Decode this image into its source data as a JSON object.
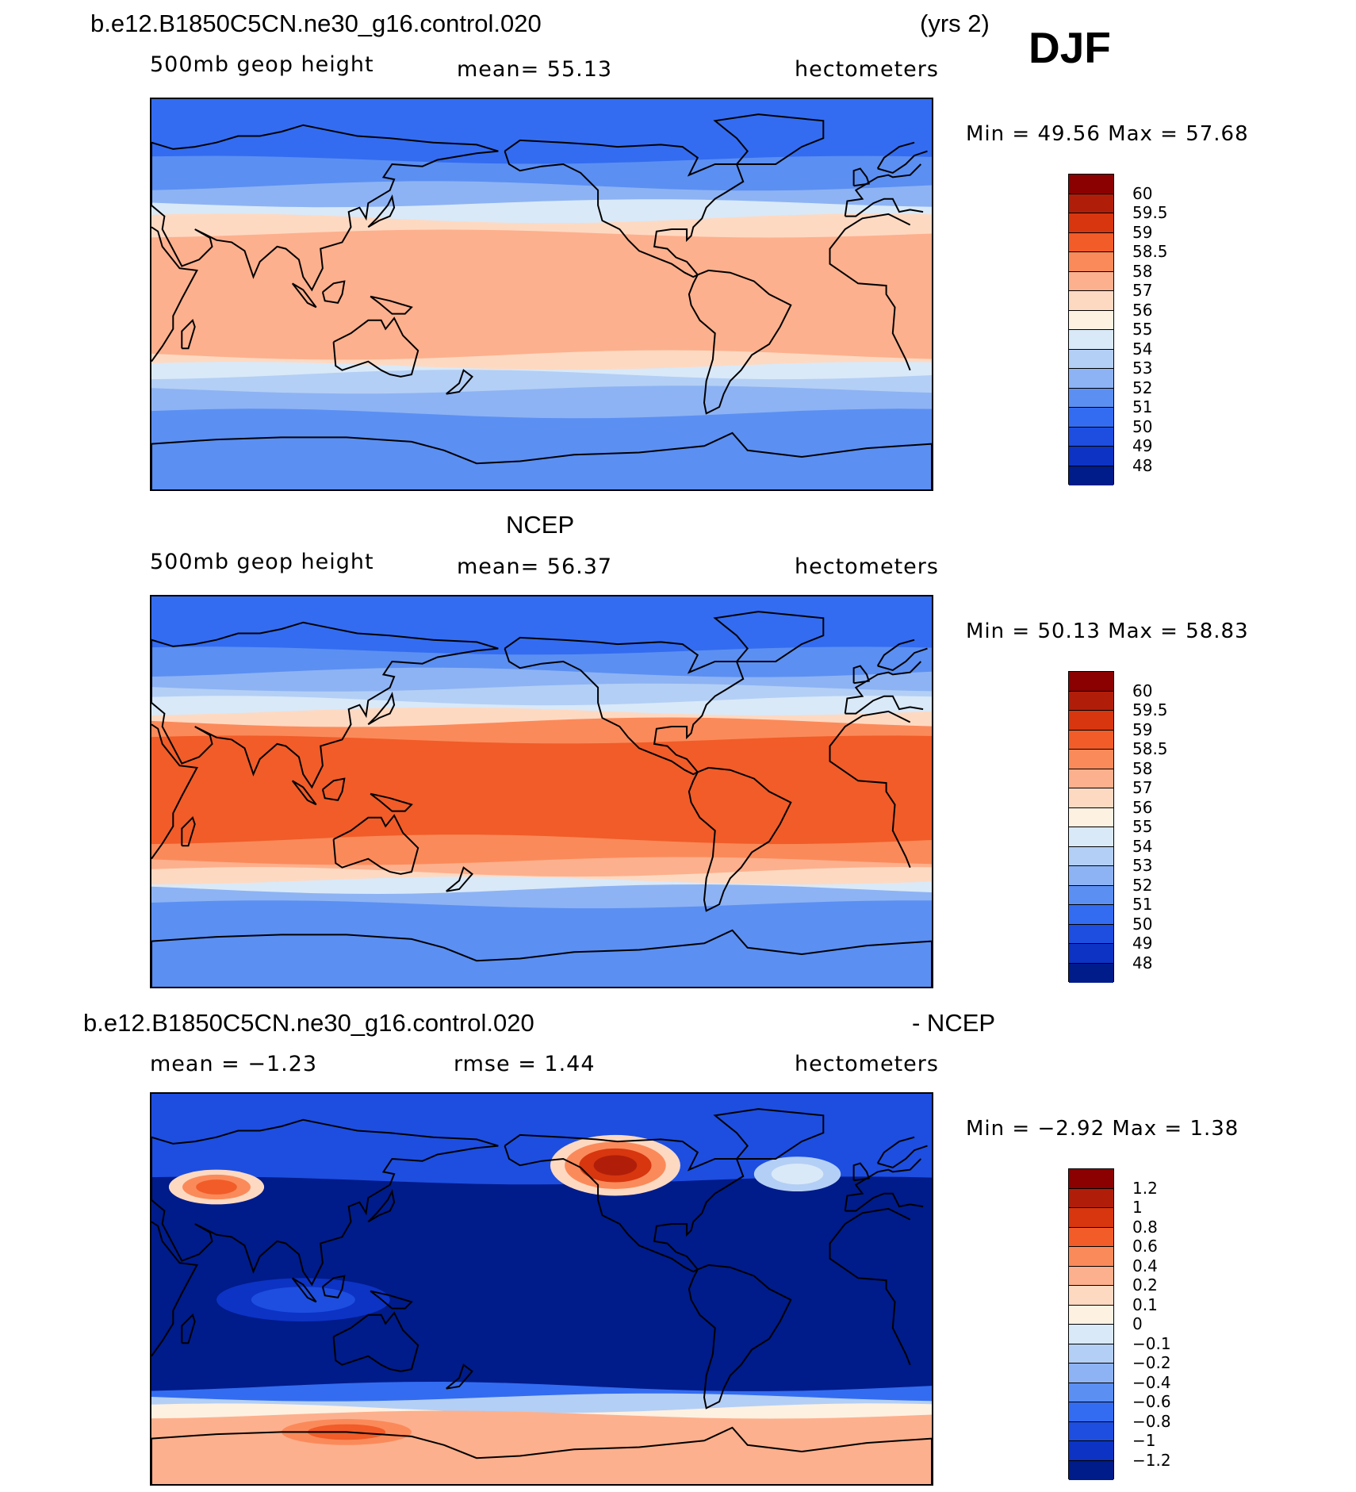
{
  "header": {
    "case_name": "b.e12.B1850C5CN.ne30_g16.control.020",
    "years": "(yrs 2)",
    "season": "DJF"
  },
  "panels": [
    {
      "id": "model",
      "title": "",
      "left_label": "500mb geop height",
      "center_label": "mean=  55.13",
      "right_label": "hectometers",
      "min_max": "Min =   49.56 Max =   57.68",
      "colorbar_labels": [
        "60",
        "59.5",
        "59",
        "58.5",
        "58",
        "57",
        "56",
        "55",
        "54",
        "53",
        "52",
        "51",
        "50",
        "49",
        "48"
      ]
    },
    {
      "id": "obs",
      "title": "NCEP",
      "left_label": "500mb geop height",
      "center_label": "mean=  56.37",
      "right_label": "hectometers",
      "min_max": "Min =   50.13 Max =   58.83",
      "colorbar_labels": [
        "60",
        "59.5",
        "59",
        "58.5",
        "58",
        "57",
        "56",
        "55",
        "54",
        "53",
        "52",
        "51",
        "50",
        "49",
        "48"
      ]
    },
    {
      "id": "diff",
      "title_left": "b.e12.B1850C5CN.ne30_g16.control.020",
      "title_right": "- NCEP",
      "left_label": "mean =  −1.23",
      "center_label": "rmse =    1.44",
      "right_label": "hectometers",
      "min_max": "Min =  −2.92 Max =    1.38",
      "colorbar_labels": [
        "1.2",
        "1",
        "0.8",
        "0.6",
        "0.4",
        "0.2",
        "0.1",
        "0",
        "−0.1",
        "−0.2",
        "−0.4",
        "−0.6",
        "−0.8",
        "−1",
        "−1.2"
      ]
    }
  ],
  "colors": {
    "colorbar_boxes": [
      "#8b0000",
      "#b01e0a",
      "#d7360f",
      "#f15c28",
      "#fb8a5a",
      "#fdb08d",
      "#fed9c2",
      "#fdf1e2",
      "#d9e9f8",
      "#b4cff5",
      "#8db3f4",
      "#5b8ff2",
      "#336cf0",
      "#1d4ee0",
      "#0c33c4",
      "#001b8a"
    ]
  },
  "fields": {
    "model_bands": [
      {
        "lat_top": 90,
        "lat_bottom": 62,
        "color": "#336cf0"
      },
      {
        "lat_top": 62,
        "lat_bottom": 50,
        "color": "#5b8ff2"
      },
      {
        "lat_top": 50,
        "lat_bottom": 42,
        "color": "#8db3f4"
      },
      {
        "lat_top": 42,
        "lat_bottom": 35,
        "color": "#d9e9f8"
      },
      {
        "lat_top": 35,
        "lat_bottom": 28,
        "color": "#fed9c2"
      },
      {
        "lat_top": 28,
        "lat_bottom": -28,
        "color": "#fdb08d"
      },
      {
        "lat_top": -28,
        "lat_bottom": -33,
        "color": "#fed9c2"
      },
      {
        "lat_top": -33,
        "lat_bottom": -37,
        "color": "#d9e9f8"
      },
      {
        "lat_top": -37,
        "lat_bottom": -44,
        "color": "#b4cff5"
      },
      {
        "lat_top": -44,
        "lat_bottom": -55,
        "color": "#8db3f4"
      },
      {
        "lat_top": -55,
        "lat_bottom": -90,
        "color": "#5b8ff2"
      }
    ],
    "obs_bands": [
      {
        "lat_top": 90,
        "lat_bottom": 65,
        "color": "#336cf0"
      },
      {
        "lat_top": 65,
        "lat_bottom": 55,
        "color": "#5b8ff2"
      },
      {
        "lat_top": 55,
        "lat_bottom": 48,
        "color": "#8db3f4"
      },
      {
        "lat_top": 48,
        "lat_bottom": 42,
        "color": "#b4cff5"
      },
      {
        "lat_top": 42,
        "lat_bottom": 37,
        "color": "#d9e9f8"
      },
      {
        "lat_top": 37,
        "lat_bottom": 32,
        "color": "#fed9c2"
      },
      {
        "lat_top": 32,
        "lat_bottom": 24,
        "color": "#fb8a5a"
      },
      {
        "lat_top": 24,
        "lat_bottom": -22,
        "color": "#f15c28"
      },
      {
        "lat_top": -22,
        "lat_bottom": -32,
        "color": "#fb8a5a"
      },
      {
        "lat_top": -32,
        "lat_bottom": -37,
        "color": "#fdb08d"
      },
      {
        "lat_top": -37,
        "lat_bottom": -41,
        "color": "#fed9c2"
      },
      {
        "lat_top": -41,
        "lat_bottom": -45,
        "color": "#d9e9f8"
      },
      {
        "lat_top": -45,
        "lat_bottom": -52,
        "color": "#8db3f4"
      },
      {
        "lat_top": -52,
        "lat_bottom": -90,
        "color": "#5b8ff2"
      }
    ],
    "diff_bands": [
      {
        "lat_top": 90,
        "lat_bottom": 50,
        "color": "#1d4ee0"
      },
      {
        "lat_top": 50,
        "lat_bottom": -45,
        "color": "#001b8a"
      },
      {
        "lat_top": -45,
        "lat_bottom": -50,
        "color": "#336cf0"
      },
      {
        "lat_top": -50,
        "lat_bottom": -55,
        "color": "#b4cff5"
      },
      {
        "lat_top": -55,
        "lat_bottom": -58,
        "color": "#fdf1e2"
      },
      {
        "lat_top": -58,
        "lat_bottom": -90,
        "color": "#fdb08d"
      }
    ],
    "diff_anomalies": [
      {
        "lon": 60,
        "lat": 47,
        "rlon": 22,
        "rlat": 8,
        "colors": [
          "#fed9c2",
          "#fb8a5a",
          "#f15c28"
        ]
      },
      {
        "lon": 244,
        "lat": 57,
        "rlon": 30,
        "rlat": 14,
        "colors": [
          "#fed9c2",
          "#fb8a5a",
          "#d7360f",
          "#b01e0a"
        ]
      },
      {
        "lon": -32,
        "lat": 53,
        "rlon": 20,
        "rlat": 8,
        "colors": [
          "#b4cff5",
          "#d9e9f8"
        ]
      },
      {
        "lon": 100,
        "lat": -5,
        "rlon": 40,
        "rlat": 10,
        "colors": [
          "#0c33c4",
          "#1d4ee0"
        ]
      },
      {
        "lon": 120,
        "lat": -66,
        "rlon": 30,
        "rlat": 6,
        "colors": [
          "#fb8a5a",
          "#f15c28"
        ]
      }
    ]
  }
}
